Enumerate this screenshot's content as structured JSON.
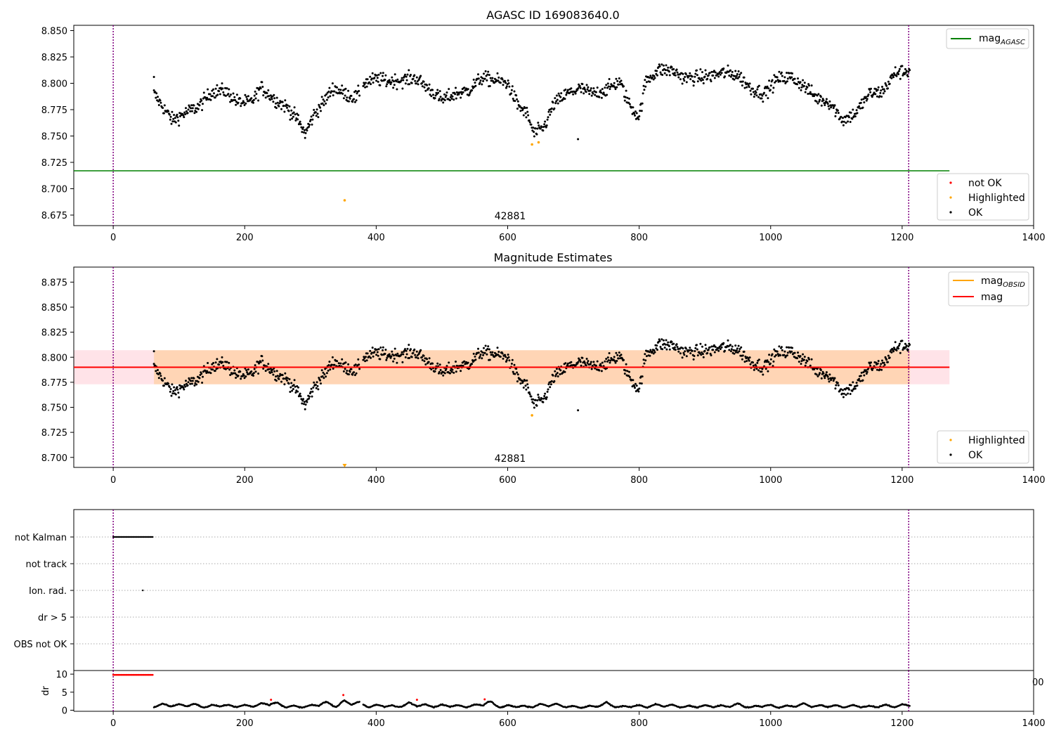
{
  "chart_data": [
    {
      "type": "scatter",
      "title": "AGASC ID 169083640.0",
      "xlabel": "",
      "ylabel": "",
      "xlim": [
        -60,
        1400
      ],
      "ylim": [
        8.665,
        8.855
      ],
      "xticks": [
        "0",
        "200",
        "400",
        "600",
        "800",
        "1000",
        "1200",
        "1400"
      ],
      "yticks": [
        "8.675",
        "8.700",
        "8.725",
        "8.750",
        "8.775",
        "8.800",
        "8.825",
        "8.850"
      ],
      "vlines": [
        0,
        1210
      ],
      "annotation": "42881",
      "mag_agasc": 8.717,
      "line_legend": [
        {
          "name": "mag",
          "sub": "AGASC",
          "color": "#008000"
        }
      ],
      "legend": [
        {
          "name": "not OK",
          "color": "#ff0000"
        },
        {
          "name": "Highlighted",
          "color": "#ffa500"
        },
        {
          "name": "OK",
          "color": "#000000"
        }
      ],
      "highlighted_points": [
        [
          352,
          8.689
        ],
        [
          637,
          8.742
        ],
        [
          647,
          8.744
        ]
      ],
      "series_ok_trend": [
        [
          62,
          8.79
        ],
        [
          75,
          8.778
        ],
        [
          90,
          8.765
        ],
        [
          110,
          8.772
        ],
        [
          130,
          8.778
        ],
        [
          150,
          8.792
        ],
        [
          170,
          8.793
        ],
        [
          190,
          8.782
        ],
        [
          210,
          8.782
        ],
        [
          225,
          8.796
        ],
        [
          245,
          8.785
        ],
        [
          265,
          8.777
        ],
        [
          280,
          8.766
        ],
        [
          292,
          8.752
        ],
        [
          305,
          8.77
        ],
        [
          320,
          8.782
        ],
        [
          335,
          8.796
        ],
        [
          352,
          8.79
        ],
        [
          370,
          8.786
        ],
        [
          380,
          8.8
        ],
        [
          400,
          8.804
        ],
        [
          420,
          8.802
        ],
        [
          440,
          8.803
        ],
        [
          460,
          8.805
        ],
        [
          480,
          8.795
        ],
        [
          500,
          8.784
        ],
        [
          520,
          8.79
        ],
        [
          540,
          8.793
        ],
        [
          560,
          8.805
        ],
        [
          580,
          8.803
        ],
        [
          600,
          8.8
        ],
        [
          615,
          8.78
        ],
        [
          630,
          8.77
        ],
        [
          640,
          8.752
        ],
        [
          655,
          8.758
        ],
        [
          670,
          8.78
        ],
        [
          690,
          8.79
        ],
        [
          710,
          8.795
        ],
        [
          730,
          8.79
        ],
        [
          750,
          8.794
        ],
        [
          770,
          8.802
        ],
        [
          785,
          8.78
        ],
        [
          800,
          8.768
        ],
        [
          810,
          8.802
        ],
        [
          830,
          8.813
        ],
        [
          850,
          8.812
        ],
        [
          870,
          8.805
        ],
        [
          900,
          8.806
        ],
        [
          930,
          8.81
        ],
        [
          950,
          8.808
        ],
        [
          970,
          8.795
        ],
        [
          990,
          8.79
        ],
        [
          1010,
          8.804
        ],
        [
          1030,
          8.806
        ],
        [
          1050,
          8.798
        ],
        [
          1070,
          8.786
        ],
        [
          1090,
          8.782
        ],
        [
          1110,
          8.765
        ],
        [
          1130,
          8.772
        ],
        [
          1150,
          8.79
        ],
        [
          1170,
          8.792
        ],
        [
          1190,
          8.81
        ],
        [
          1210,
          8.812
        ]
      ],
      "outlier_points": [
        [
          707,
          8.747
        ],
        [
          62,
          8.806
        ]
      ]
    },
    {
      "type": "scatter",
      "title": "Magnitude Estimates",
      "xlim": [
        -60,
        1400
      ],
      "ylim": [
        8.69,
        8.89
      ],
      "xticks": [
        "0",
        "200",
        "400",
        "600",
        "800",
        "1000",
        "1200",
        "1400"
      ],
      "yticks": [
        "8.700",
        "8.725",
        "8.750",
        "8.775",
        "8.800",
        "8.825",
        "8.850",
        "8.875"
      ],
      "vlines": [
        0,
        1210
      ],
      "annotation": "42881",
      "mag": 8.79,
      "mag_band": [
        8.773,
        8.807
      ],
      "mag_obsid_band": [
        8.773,
        8.807
      ],
      "line_legend": [
        {
          "name": "mag",
          "sub": "OBSID",
          "color": "#ffa500"
        },
        {
          "name": "mag",
          "sub": "",
          "color": "#ff0000"
        }
      ],
      "legend": [
        {
          "name": "Highlighted",
          "color": "#ffa500"
        },
        {
          "name": "OK",
          "color": "#000000"
        }
      ],
      "highlighted_points": [
        [
          637,
          8.742
        ],
        [
          352,
          8.692
        ]
      ]
    },
    {
      "type": "scatter",
      "title": "",
      "xlim": [
        -60,
        1400
      ],
      "category_labels": [
        "not Kalman",
        "not track",
        "Ion. rad.",
        "dr > 5",
        "OBS not OK"
      ],
      "flag_not_kalman_range": [
        0,
        60
      ],
      "flag_ion_rad_point": [
        45
      ],
      "vlines": [
        0,
        1210
      ]
    },
    {
      "type": "scatter",
      "title": "",
      "xlim": [
        -60,
        1400
      ],
      "ylim": [
        -0.3,
        11
      ],
      "xticks": [
        "0",
        "200",
        "400",
        "600",
        "800",
        "1000",
        "1200",
        "1400"
      ],
      "yticks": [
        "0",
        "5",
        "10"
      ],
      "ylabel": "dr",
      "vlines": [
        0,
        1210
      ],
      "dr_high_range": [
        0,
        60
      ],
      "dr_high_value": 9.8,
      "dr_segments": [
        [
          62,
          1.5
        ],
        [
          80,
          1.9
        ],
        [
          100,
          1.7
        ],
        [
          120,
          2.0
        ],
        [
          140,
          1.2
        ],
        [
          160,
          1.8
        ],
        [
          180,
          1.5
        ],
        [
          200,
          1.5
        ],
        [
          220,
          1.8
        ],
        [
          240,
          2.7
        ],
        [
          260,
          1.5
        ],
        [
          280,
          1.2
        ],
        [
          300,
          1.4
        ],
        [
          320,
          2.6
        ],
        [
          340,
          1.6
        ],
        [
          352,
          2.9
        ],
        [
          370,
          2.6
        ],
        [
          390,
          1.3
        ],
        [
          410,
          1.8
        ],
        [
          430,
          1.2
        ],
        [
          450,
          2.2
        ],
        [
          470,
          1.8
        ],
        [
          490,
          1.5
        ],
        [
          510,
          1.7
        ],
        [
          530,
          1.4
        ],
        [
          550,
          1.6
        ],
        [
          570,
          2.8
        ],
        [
          590,
          1.2
        ],
        [
          610,
          1.6
        ],
        [
          630,
          1.2
        ],
        [
          650,
          1.8
        ],
        [
          670,
          2.0
        ],
        [
          690,
          1.3
        ],
        [
          710,
          1.1
        ],
        [
          730,
          1.3
        ],
        [
          750,
          2.3
        ],
        [
          770,
          1.1
        ],
        [
          790,
          1.6
        ],
        [
          810,
          1.3
        ],
        [
          830,
          1.8
        ],
        [
          850,
          1.6
        ],
        [
          870,
          1.2
        ],
        [
          890,
          1.4
        ],
        [
          910,
          1.5
        ],
        [
          930,
          1.4
        ],
        [
          950,
          2.0
        ],
        [
          970,
          1.0
        ],
        [
          990,
          1.8
        ],
        [
          1010,
          1.2
        ],
        [
          1030,
          1.4
        ],
        [
          1050,
          2.0
        ],
        [
          1070,
          1.4
        ],
        [
          1090,
          1.6
        ],
        [
          1110,
          1.3
        ],
        [
          1130,
          1.5
        ],
        [
          1150,
          1.2
        ],
        [
          1170,
          1.6
        ],
        [
          1190,
          1.4
        ],
        [
          1210,
          2.0
        ]
      ],
      "dr_red_points": [
        [
          240,
          2.9
        ],
        [
          350,
          4.2
        ],
        [
          462,
          2.9
        ],
        [
          565,
          3.0
        ]
      ],
      "clipped_tick_text": "00"
    }
  ]
}
